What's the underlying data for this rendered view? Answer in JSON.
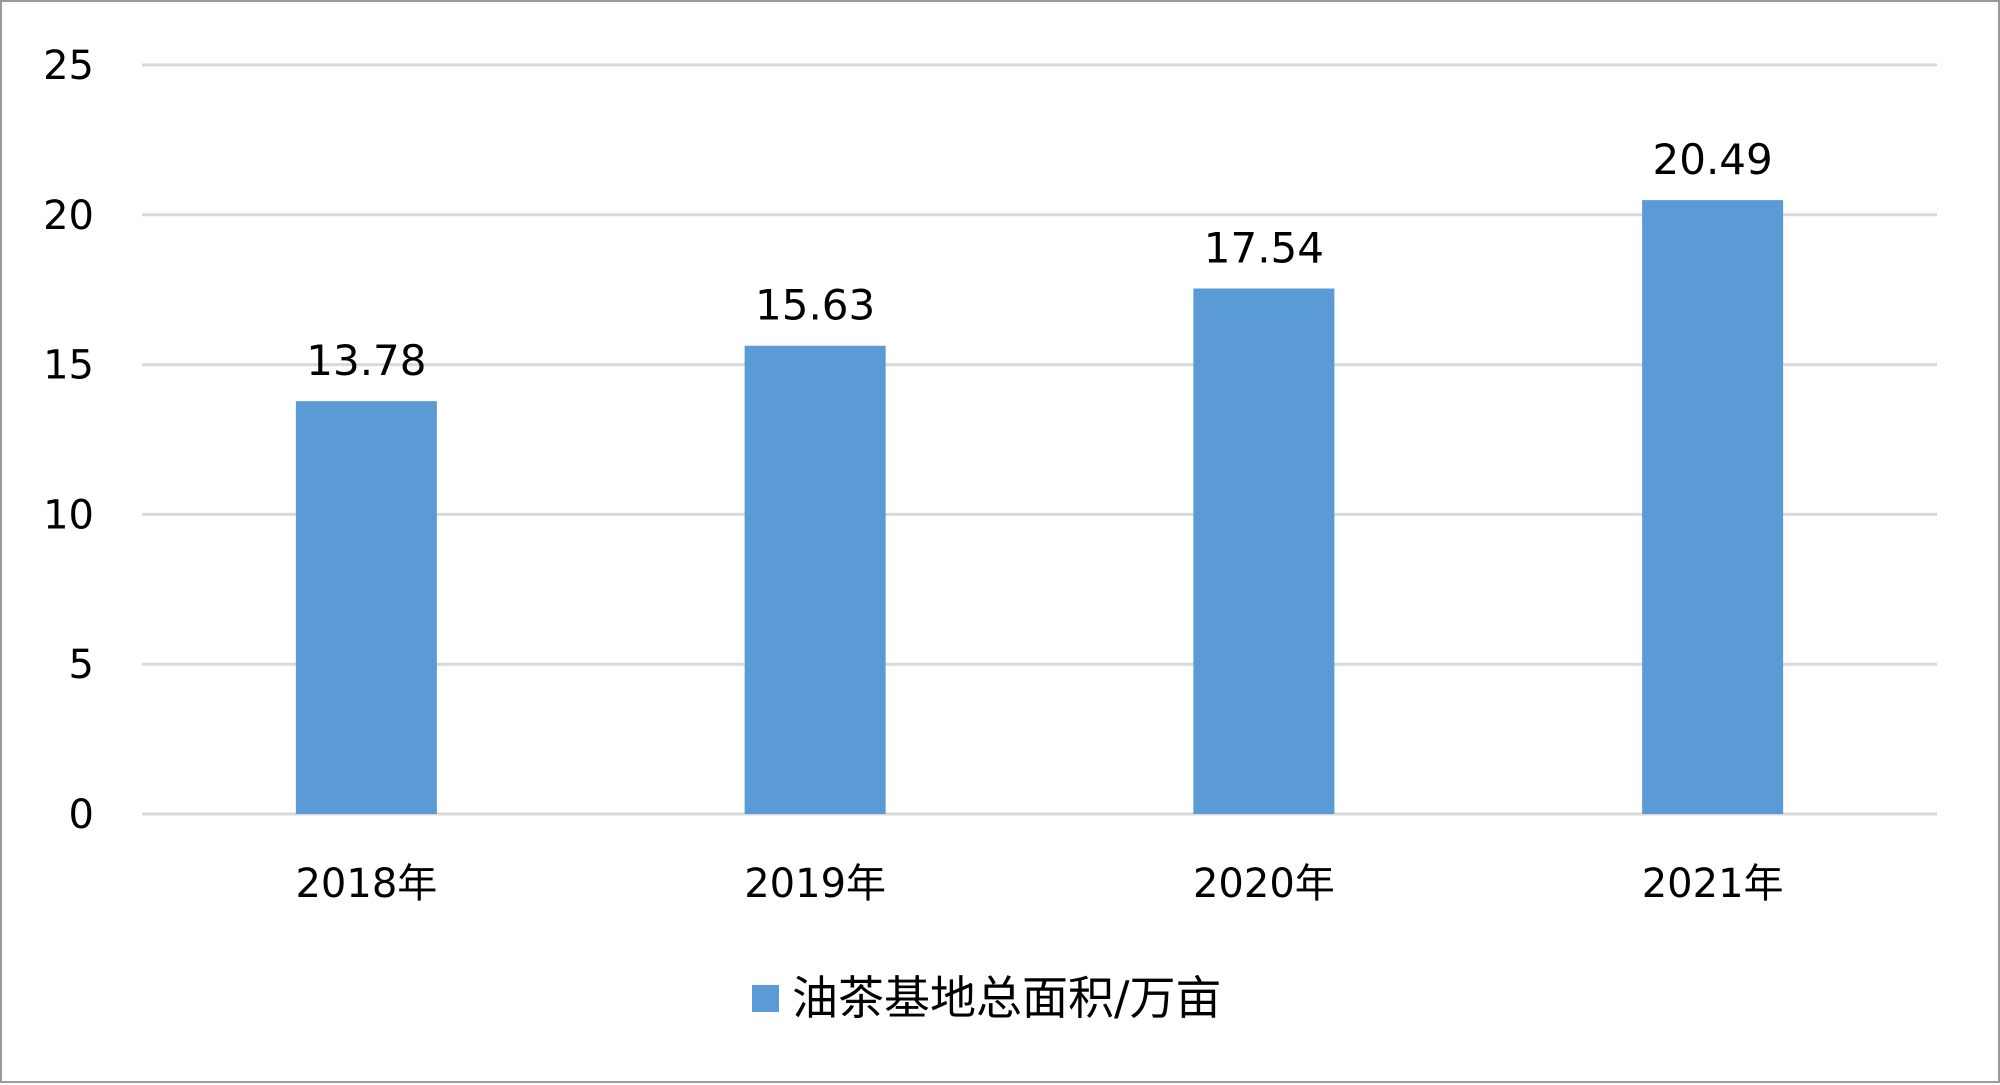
{
  "chart_data": {
    "type": "bar",
    "categories": [
      "2018年",
      "2019年",
      "2020年",
      "2021年"
    ],
    "series": [
      {
        "name": "油茶基地总面积/万亩",
        "values": [
          13.78,
          15.63,
          17.54,
          20.49
        ],
        "color": "#5b9bd5"
      }
    ],
    "data_labels": [
      "13.78",
      "15.63",
      "17.54",
      "20.49"
    ],
    "y_ticks": [
      "0",
      "5",
      "10",
      "15",
      "20",
      "25"
    ],
    "ylim": [
      0,
      25
    ],
    "grid": true,
    "legend_position": "bottom",
    "title": "",
    "xlabel": "",
    "ylabel": ""
  }
}
